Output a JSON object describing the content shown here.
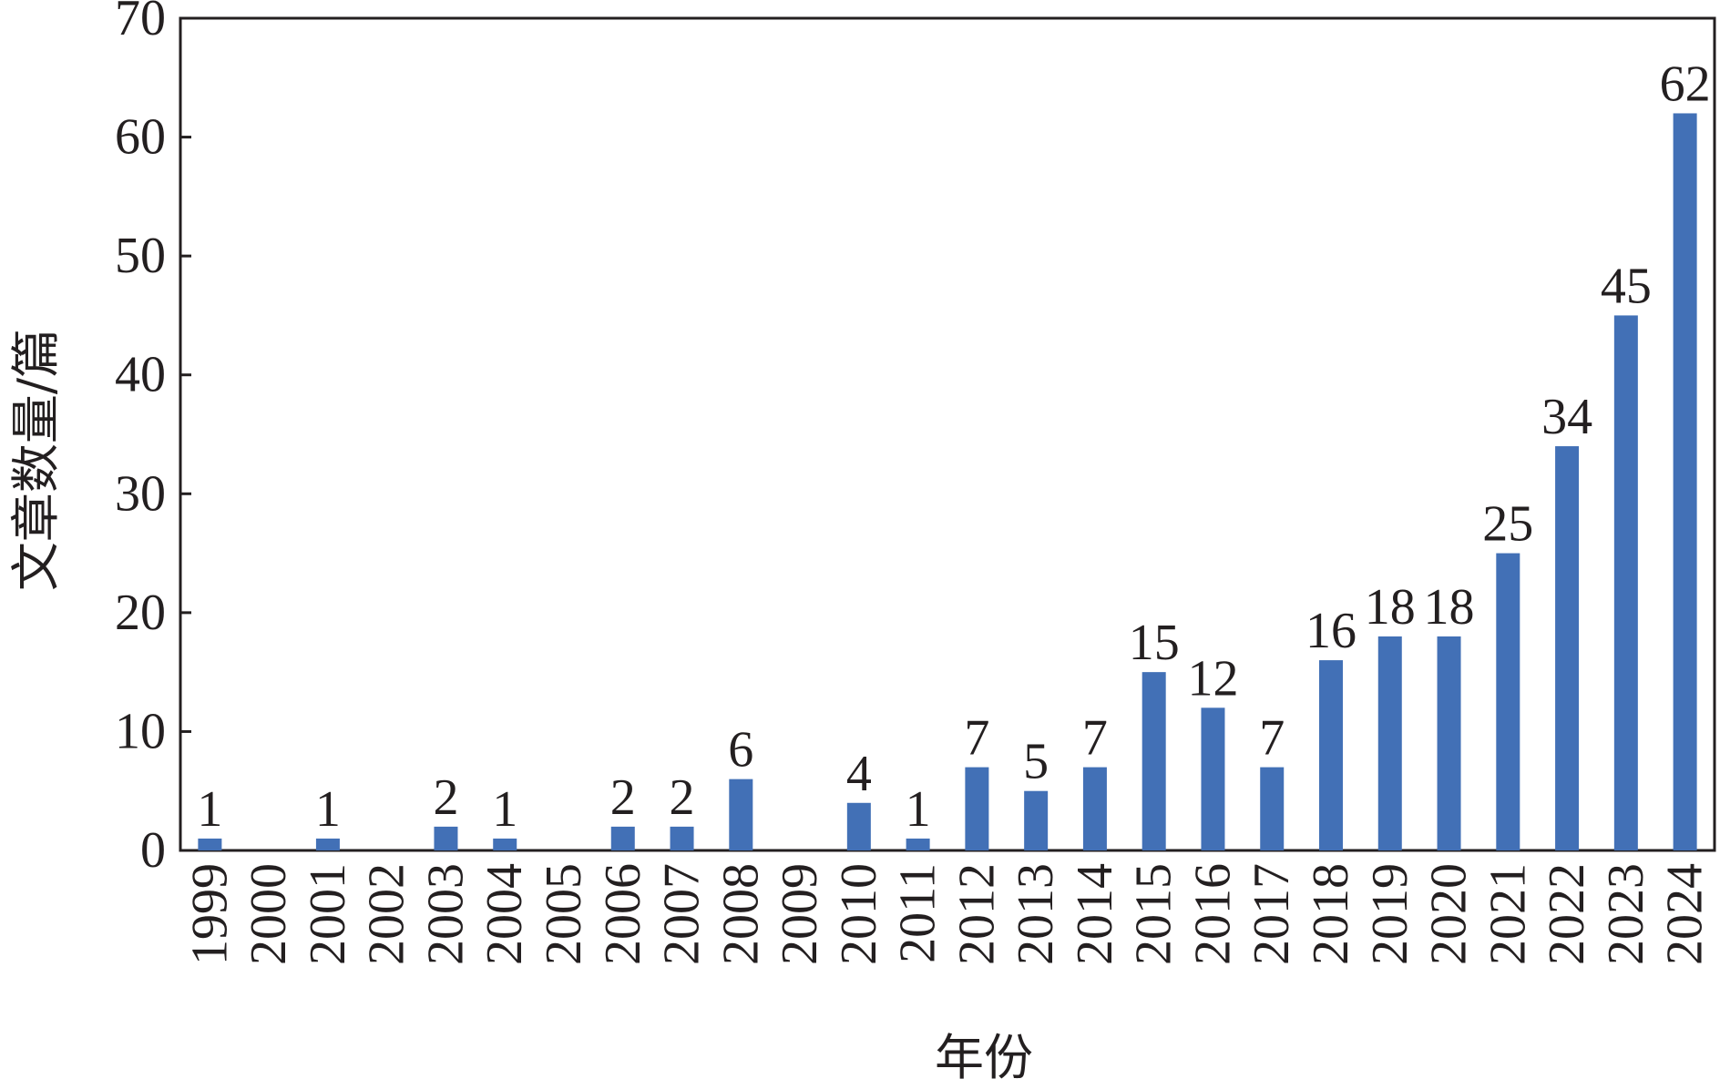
{
  "chart_data": {
    "type": "bar",
    "categories": [
      "1999",
      "2000",
      "2001",
      "2002",
      "2003",
      "2004",
      "2005",
      "2006",
      "2007",
      "2008",
      "2009",
      "2010",
      "2011",
      "2012",
      "2013",
      "2014",
      "2015",
      "2016",
      "2017",
      "2018",
      "2019",
      "2020",
      "2021",
      "2022",
      "2023",
      "2024"
    ],
    "values": [
      1,
      null,
      1,
      null,
      2,
      1,
      null,
      2,
      2,
      6,
      null,
      4,
      1,
      7,
      5,
      7,
      15,
      12,
      7,
      16,
      18,
      18,
      25,
      34,
      45,
      62
    ],
    "data_labels": [
      "1",
      "",
      "1",
      "",
      "2",
      "1",
      "",
      "2",
      "2",
      "6",
      "",
      "4",
      "1",
      "7",
      "5",
      "7",
      "15",
      "12",
      "7",
      "16",
      "18",
      "18",
      "25",
      "34",
      "45",
      "62"
    ],
    "title": "",
    "xlabel": "年份",
    "ylabel": "文章数量/篇",
    "ylim": [
      0,
      70
    ],
    "yticks": [
      0,
      10,
      20,
      30,
      40,
      50,
      60,
      70
    ],
    "ytick_labels": [
      "0",
      "10",
      "20",
      "30",
      "40",
      "50",
      "60",
      "70"
    ],
    "grid": false,
    "legend": "none",
    "bar_color": "#4270b6",
    "text_color": "#231f20"
  }
}
